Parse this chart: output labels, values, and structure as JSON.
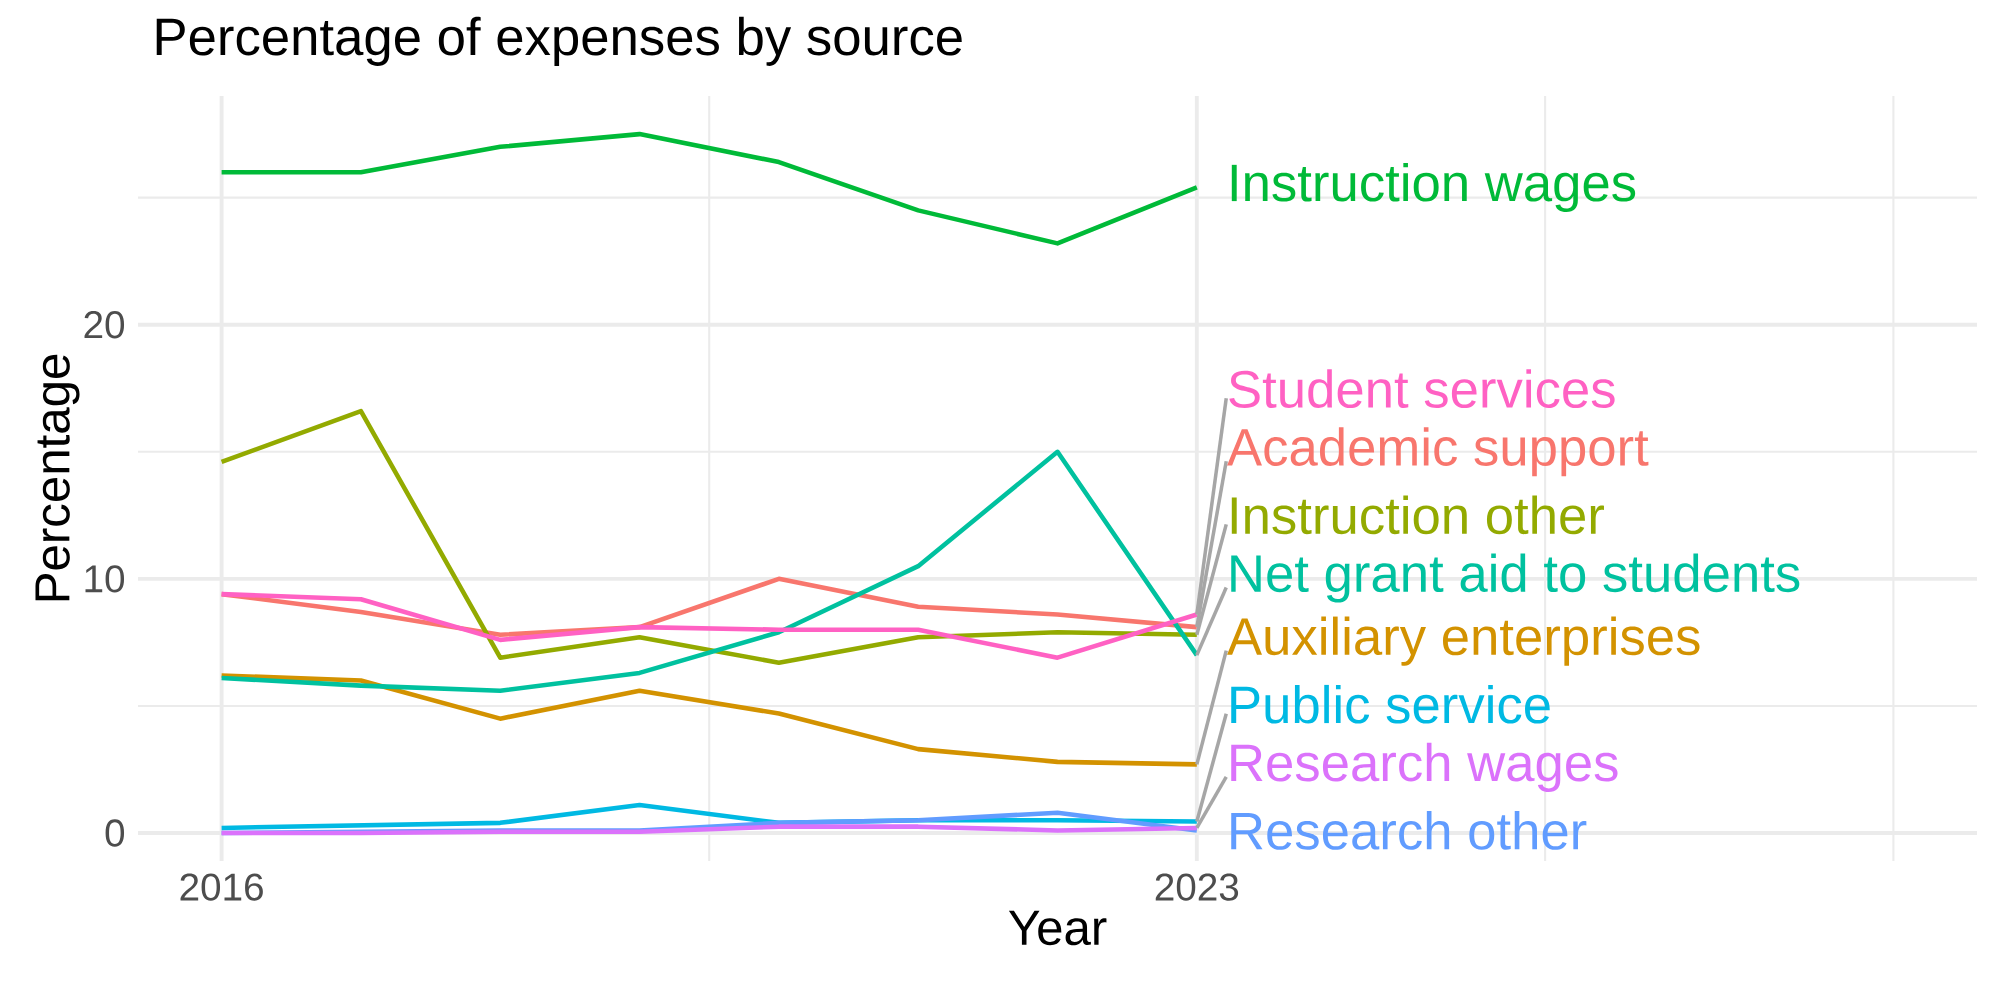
{
  "chart_data": {
    "type": "line",
    "title": "Percentage of expenses by source",
    "xlabel": "Year",
    "ylabel": "Percentage",
    "x": [
      2016,
      2017,
      2018,
      2019,
      2020,
      2021,
      2022,
      2023
    ],
    "xlim": [
      2015.4,
      2028.6
    ],
    "ylim": [
      -1.1,
      29.0
    ],
    "xticks": [
      2016,
      {
        "value": 2019.5,
        "label": null
      },
      2023,
      {
        "value": 2025.5,
        "label": null
      },
      {
        "value": 2028,
        "label": null
      }
    ],
    "yticks": [
      0,
      {
        "value": 5,
        "label": null
      },
      10,
      {
        "value": 15,
        "label": null
      },
      20,
      {
        "value": 25,
        "label": null
      }
    ],
    "grid": true,
    "legend": false,
    "series": [
      {
        "name": "Academic support",
        "color": "#f8766d",
        "values": [
          9.4,
          8.7,
          7.8,
          8.1,
          10.0,
          8.9,
          8.6,
          8.1
        ]
      },
      {
        "name": "Auxiliary enterprises",
        "color": "#d39200",
        "values": [
          6.2,
          6.0,
          4.5,
          5.6,
          4.7,
          3.3,
          2.8,
          2.7
        ]
      },
      {
        "name": "Instruction other",
        "color": "#93aa00",
        "values": [
          14.6,
          16.6,
          6.9,
          7.7,
          6.7,
          7.7,
          7.9,
          7.8
        ]
      },
      {
        "name": "Instruction wages",
        "color": "#00ba38",
        "values": [
          26.0,
          26.0,
          27.0,
          27.5,
          26.4,
          24.5,
          23.2,
          25.4
        ]
      },
      {
        "name": "Net grant aid to students",
        "color": "#00c19f",
        "values": [
          6.1,
          5.8,
          5.6,
          6.3,
          7.9,
          10.5,
          15.0,
          7.0
        ]
      },
      {
        "name": "Public service",
        "color": "#00b9e3",
        "values": [
          0.2,
          0.3,
          0.4,
          1.1,
          0.4,
          0.5,
          0.5,
          0.45
        ]
      },
      {
        "name": "Research other",
        "color": "#619cff",
        "values": [
          0.0,
          0.05,
          0.1,
          0.1,
          0.4,
          0.5,
          0.8,
          0.1
        ]
      },
      {
        "name": "Research wages",
        "color": "#db72fb",
        "values": [
          0.0,
          0.0,
          0.05,
          0.05,
          0.25,
          0.25,
          0.1,
          0.2
        ]
      },
      {
        "name": "Student services",
        "color": "#ff61c3",
        "values": [
          9.4,
          9.2,
          7.6,
          8.1,
          8.0,
          8.0,
          6.9,
          8.6
        ]
      }
    ]
  }
}
